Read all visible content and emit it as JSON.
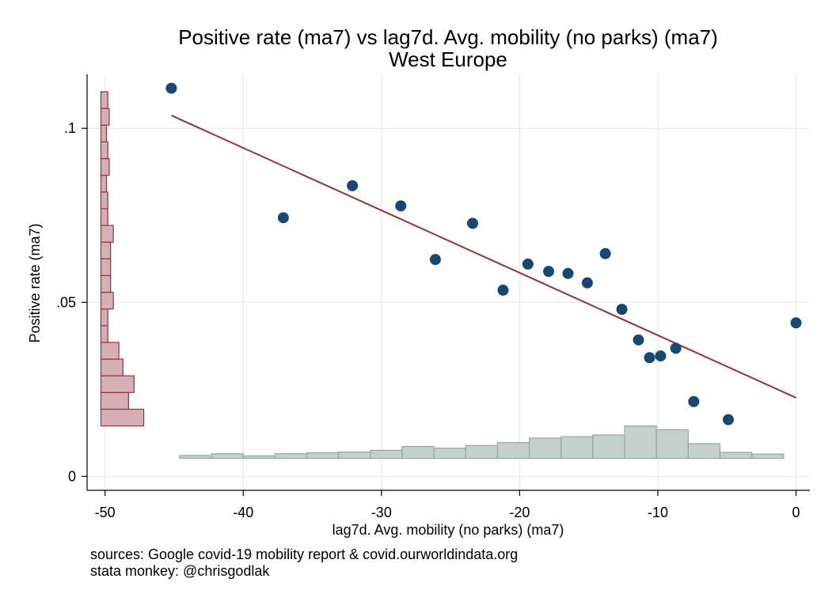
{
  "chart_data": {
    "type": "scatter",
    "title": "Positive rate (ma7) vs lag7d. Avg. mobility (no parks) (ma7)",
    "subtitle": "West Europe",
    "xlabel": "lag7d. Avg. mobility (no parks) (ma7)",
    "ylabel": "Positive rate (ma7)",
    "xlim": [
      -51.3,
      1.0
    ],
    "ylim": [
      -0.004,
      0.1155
    ],
    "x_ticks": [
      -50,
      -40,
      -30,
      -20,
      -10,
      0
    ],
    "x_tick_labels": [
      "-50",
      "-40",
      "-30",
      "-20",
      "-10",
      "0"
    ],
    "y_ticks": [
      0,
      0.05,
      0.1
    ],
    "y_tick_labels": [
      "0",
      ".05",
      ".1"
    ],
    "grid": true,
    "points": [
      {
        "x": -45.2,
        "y": 0.1115
      },
      {
        "x": -37.1,
        "y": 0.0743
      },
      {
        "x": -32.1,
        "y": 0.0835
      },
      {
        "x": -28.6,
        "y": 0.0777
      },
      {
        "x": -26.1,
        "y": 0.0623
      },
      {
        "x": -23.4,
        "y": 0.0727
      },
      {
        "x": -21.2,
        "y": 0.0535
      },
      {
        "x": -19.4,
        "y": 0.061
      },
      {
        "x": -17.9,
        "y": 0.0589
      },
      {
        "x": -16.5,
        "y": 0.0583
      },
      {
        "x": -15.1,
        "y": 0.0556
      },
      {
        "x": -13.8,
        "y": 0.064
      },
      {
        "x": -12.6,
        "y": 0.048
      },
      {
        "x": -11.4,
        "y": 0.0392
      },
      {
        "x": -10.6,
        "y": 0.0341
      },
      {
        "x": -9.8,
        "y": 0.0346
      },
      {
        "x": -8.7,
        "y": 0.0368
      },
      {
        "x": -7.4,
        "y": 0.0215
      },
      {
        "x": -4.9,
        "y": 0.0163
      },
      {
        "x": 0.0,
        "y": 0.0441
      }
    ],
    "fit_line": {
      "x": [
        -45.2,
        0.0
      ],
      "y": [
        0.1037,
        0.0226
      ]
    },
    "y_histogram": {
      "base_x": -50.3,
      "bins": [
        {
          "y0": 0.0145,
          "y1": 0.0193,
          "len": 3.1
        },
        {
          "y0": 0.0193,
          "y1": 0.0241,
          "len": 2.0
        },
        {
          "y0": 0.0241,
          "y1": 0.0289,
          "len": 2.4
        },
        {
          "y0": 0.0289,
          "y1": 0.0337,
          "len": 1.6
        },
        {
          "y0": 0.0337,
          "y1": 0.0385,
          "len": 1.3
        },
        {
          "y0": 0.0385,
          "y1": 0.0433,
          "len": 0.5
        },
        {
          "y0": 0.0433,
          "y1": 0.0481,
          "len": 0.5
        },
        {
          "y0": 0.0481,
          "y1": 0.0529,
          "len": 0.9
        },
        {
          "y0": 0.0529,
          "y1": 0.0577,
          "len": 0.7
        },
        {
          "y0": 0.0577,
          "y1": 0.0625,
          "len": 0.7
        },
        {
          "y0": 0.0625,
          "y1": 0.0673,
          "len": 0.7
        },
        {
          "y0": 0.0673,
          "y1": 0.0721,
          "len": 0.9
        },
        {
          "y0": 0.0721,
          "y1": 0.0769,
          "len": 0.5
        },
        {
          "y0": 0.0769,
          "y1": 0.0817,
          "len": 0.5
        },
        {
          "y0": 0.0817,
          "y1": 0.0865,
          "len": 0.4
        },
        {
          "y0": 0.0865,
          "y1": 0.0913,
          "len": 0.6
        },
        {
          "y0": 0.0913,
          "y1": 0.0961,
          "len": 0.5
        },
        {
          "y0": 0.0961,
          "y1": 0.1009,
          "len": 0.4
        },
        {
          "y0": 0.1009,
          "y1": 0.1057,
          "len": 0.6
        },
        {
          "y0": 0.1057,
          "y1": 0.1105,
          "len": 0.5
        }
      ]
    },
    "x_histogram": {
      "base_y": 0.0052,
      "bins": [
        {
          "x0": -44.6,
          "x1": -42.3,
          "h": 0.0008
        },
        {
          "x0": -42.3,
          "x1": -40.0,
          "h": 0.0013
        },
        {
          "x0": -40.0,
          "x1": -37.7,
          "h": 0.0007
        },
        {
          "x0": -37.7,
          "x1": -35.4,
          "h": 0.0013
        },
        {
          "x0": -35.4,
          "x1": -33.1,
          "h": 0.0016
        },
        {
          "x0": -33.1,
          "x1": -30.8,
          "h": 0.0018
        },
        {
          "x0": -30.8,
          "x1": -28.5,
          "h": 0.0023
        },
        {
          "x0": -28.5,
          "x1": -26.2,
          "h": 0.0034
        },
        {
          "x0": -26.2,
          "x1": -23.9,
          "h": 0.0029
        },
        {
          "x0": -23.9,
          "x1": -21.6,
          "h": 0.0037
        },
        {
          "x0": -21.6,
          "x1": -19.3,
          "h": 0.0045
        },
        {
          "x0": -19.3,
          "x1": -17.0,
          "h": 0.0058
        },
        {
          "x0": -17.0,
          "x1": -14.7,
          "h": 0.0062
        },
        {
          "x0": -14.7,
          "x1": -12.4,
          "h": 0.0067
        },
        {
          "x0": -12.4,
          "x1": -10.1,
          "h": 0.0093
        },
        {
          "x0": -10.1,
          "x1": -7.8,
          "h": 0.0082
        },
        {
          "x0": -7.8,
          "x1": -5.5,
          "h": 0.0042
        },
        {
          "x0": -5.5,
          "x1": -3.2,
          "h": 0.0017
        },
        {
          "x0": -3.2,
          "x1": -0.9,
          "h": 0.0012
        }
      ]
    },
    "colors": {
      "points": "#1a476f",
      "fit_line": "#90353b",
      "y_hist_fill": "#d5afb3",
      "y_hist_stroke": "#90353b",
      "x_hist_fill": "#c4d0cb",
      "x_hist_stroke": "#93a79e",
      "grid": "#e6e6e6"
    }
  },
  "notes": {
    "line1": "sources: Google covid-19 mobility report & covid.ourworldindata.org",
    "line2": "stata monkey: @chrisgodlak"
  }
}
